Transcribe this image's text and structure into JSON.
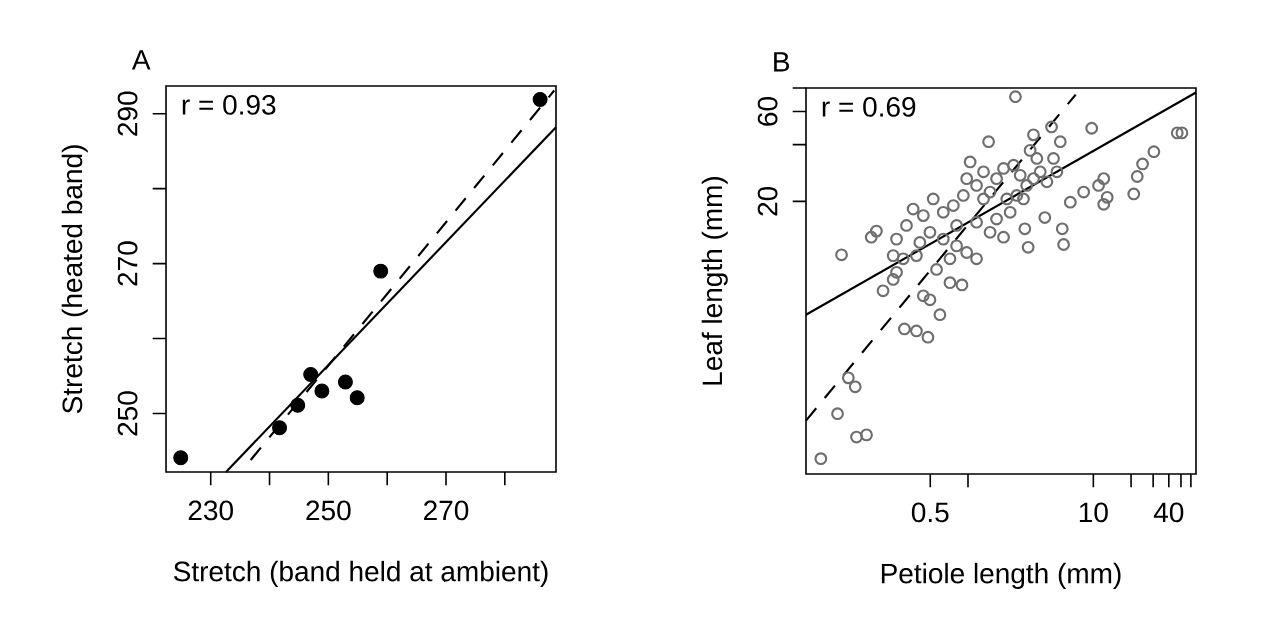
{
  "chart_data": [
    {
      "type": "scatter",
      "title": "A",
      "xlabel": "Stretch (band held at ambient)",
      "ylabel": "Stretch (heated band)",
      "annotations": [
        "r = 0.93"
      ],
      "xlim": [
        222.4,
        288.7
      ],
      "ylim": [
        242.2,
        293.7
      ],
      "xticks": [
        230,
        {
          "value": 240,
          "label": null
        },
        250,
        {
          "value": 260,
          "label": null
        },
        270,
        {
          "value": 280,
          "label": null
        }
      ],
      "yticks": [
        250,
        {
          "value": 260,
          "label": null
        },
        270,
        {
          "value": 280,
          "label": null
        },
        290
      ],
      "series": [
        {
          "type": "scatter",
          "color": "#000000",
          "marker": "circle",
          "x": [
            224.9,
            241.7,
            244.8,
            247.0,
            248.9,
            252.9,
            254.9,
            258.9,
            286.0
          ],
          "values": [
            244.1,
            248.1,
            251.1,
            255.2,
            253.0,
            254.2,
            252.1,
            269.0,
            291.9
          ]
        },
        {
          "type": "line",
          "color": "#000000",
          "line_style": "solid",
          "marker": "none",
          "x": [
            232.6,
            288.7
          ],
          "values": [
            242.2,
            288.2
          ]
        },
        {
          "type": "line",
          "color": "#000000",
          "line_style": "dashed",
          "marker": "none",
          "x": [
            236.8,
            288.4
          ],
          "values": [
            243.8,
            293.1
          ]
        }
      ]
    },
    {
      "type": "scatter",
      "title": "B",
      "xlabel": "Petiole length (mm)",
      "ylabel": "Leaf length (mm)",
      "annotations": [
        "r = 0.69"
      ],
      "log": "xy",
      "xlim": [
        0.051,
        65.9
      ],
      "ylim": [
        0.713,
        80
      ],
      "xticks": [
        0.5,
        {
          "value": 1,
          "label": null
        },
        10,
        {
          "value": 20,
          "label": null
        },
        {
          "value": 30,
          "label": null
        },
        40,
        {
          "value": 50,
          "label": null
        },
        {
          "value": 60,
          "label": null
        }
      ],
      "yticks": [
        20,
        {
          "value": 40,
          "label": null
        },
        60,
        {
          "value": 80,
          "label": null
        }
      ],
      "series": [
        {
          "type": "scatter",
          "color": "#6e6e6e",
          "marker": "circle",
          "x": [
            0.067,
            0.091,
            0.129,
            0.155,
            0.111,
            0.126,
            0.098,
            0.169,
            0.186,
            0.311,
            0.388,
            0.479,
            0.597,
            2.39,
            3.33,
            4.64,
            5.45,
            9.7,
            1.46,
            30.4,
            24.7,
            22.4,
            21.0,
            12.1,
            11.0,
            8.37,
            12.1,
            12.9,
            6.55,
            5.65,
            5.79,
            4.1,
            3.02,
            2.84,
            1.92,
            0.895,
            0.718,
            0.497,
            0.44,
            0.21,
            0.253,
            0.269,
            0.323,
            0.365,
            0.44,
            0.528,
            0.635,
            0.764,
            0.918,
            0.976,
            1.17,
            1.33,
            1.5,
            1.69,
            1.92,
            2.31,
            2.61,
            2.94,
            3.33,
            3.77,
            4.26,
            4.81,
            5.12,
            0.635,
            0.811,
            0.976,
            1.17,
            1.5,
            1.69,
            0.811,
            0.718,
            0.561,
            0.388,
            0.304,
            0.269,
            1.04,
            1.33,
            2.17,
            2.45,
            2.04,
            1.17,
            0.497,
            0.413,
            0.253,
            3.13,
            3.54,
            2.77,
            46.7,
            50.9
          ],
          "values": [
            0.86,
            1.49,
            1.12,
            1.15,
            2.31,
            2.07,
            10.4,
            12.9,
            13.9,
            4.2,
            4.1,
            3.8,
            5.0,
            71.9,
            45.1,
            49.7,
            41.5,
            48.9,
            41.5,
            36.7,
            31.6,
            27.1,
            21.9,
            26.4,
            24.3,
            22.4,
            19.3,
            21.0,
            19.8,
            14.3,
            11.8,
            16.4,
            11.4,
            14.3,
            12.9,
            7.2,
            7.4,
            6.0,
            6.3,
            6.7,
            7.7,
            12.6,
            14.9,
            18.2,
            16.8,
            20.6,
            17.5,
            19.0,
            21.5,
            26.4,
            24.3,
            20.6,
            22.4,
            26.4,
            29.9,
            31.1,
            27.5,
            24.3,
            26.4,
            28.7,
            25.4,
            33.8,
            28.7,
            12.6,
            11.6,
            10.7,
            9.9,
            13.7,
            16.1,
            14.9,
            9.9,
            8.7,
            10.3,
            9.9,
            8.4,
            32.4,
            28.7,
            17.5,
            21.5,
            20.6,
            15.5,
            13.7,
            12.1,
            10.3,
            37.3,
            33.8,
            20.6,
            46.2,
            46.2
          ]
        },
        {
          "type": "line",
          "color": "#000000",
          "line_style": "solid",
          "marker": "none",
          "x": [
            0.051,
            65.9
          ],
          "values": [
            5.0,
            75.7
          ]
        },
        {
          "type": "line",
          "color": "#000000",
          "line_style": "dashed",
          "marker": "none",
          "x": [
            0.051,
            7.23
          ],
          "values": [
            1.37,
            73.8
          ]
        }
      ]
    }
  ]
}
